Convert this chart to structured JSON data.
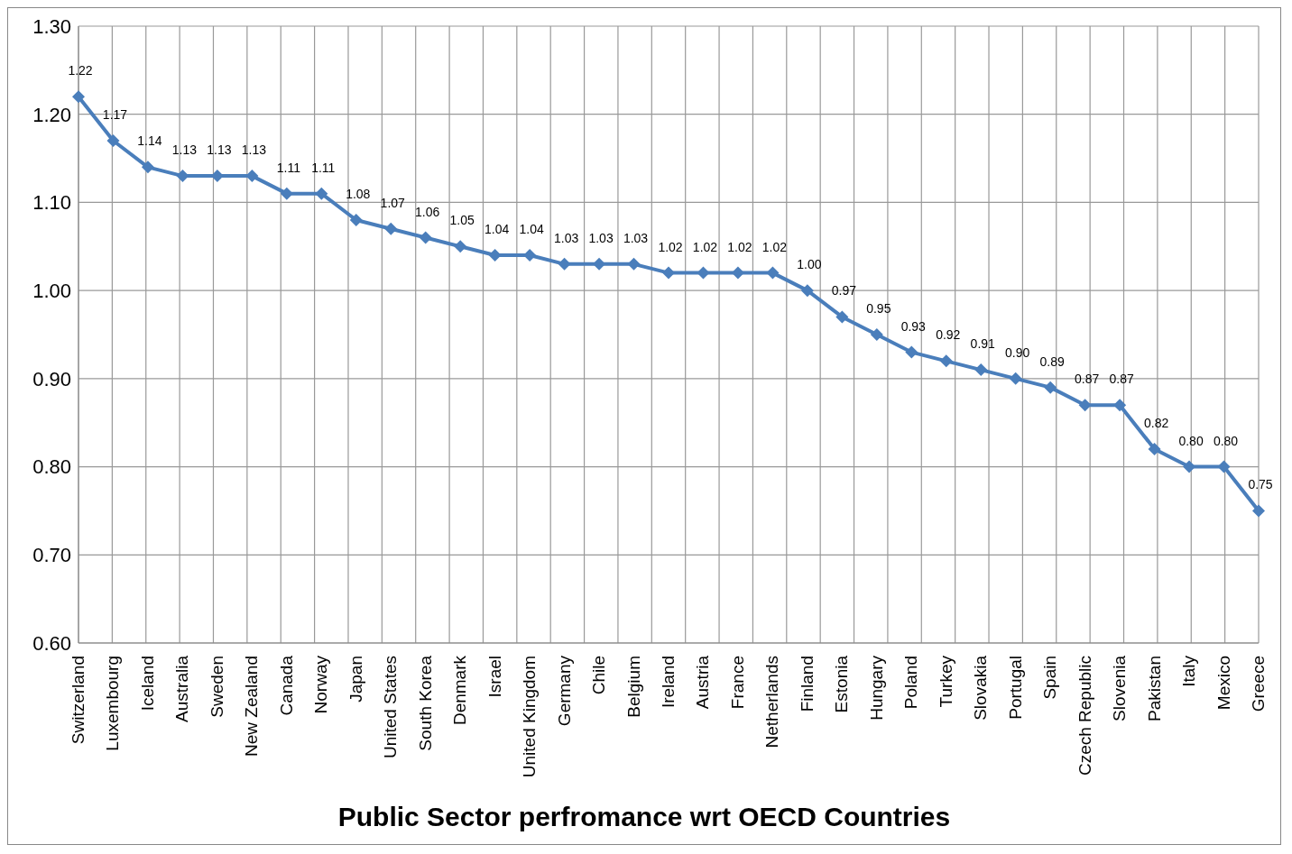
{
  "chart_data": {
    "type": "line",
    "title": "Public Sector perfromance wrt OECD Countries",
    "categories": [
      "Switzerland",
      "Luxembourg",
      "Iceland",
      "Australia",
      "Sweden",
      "New Zealand",
      "Canada",
      "Norway",
      "Japan",
      "United States",
      "South Korea",
      "Denmark",
      "Israel",
      "United Kingdom",
      "Germany",
      "Chile",
      "Belgium",
      "Ireland",
      "Austria",
      "France",
      "Netherlands",
      "Finland",
      "Estonia",
      "Hungary",
      "Poland",
      "Turkey",
      "Slovakia",
      "Portugal",
      "Spain",
      "Czech Republic",
      "Slovenia",
      "Pakistan",
      "Italy",
      "Mexico",
      "Greece"
    ],
    "values": [
      1.22,
      1.17,
      1.14,
      1.13,
      1.13,
      1.13,
      1.11,
      1.11,
      1.08,
      1.07,
      1.06,
      1.05,
      1.04,
      1.04,
      1.03,
      1.03,
      1.03,
      1.02,
      1.02,
      1.02,
      1.02,
      1.0,
      0.97,
      0.95,
      0.93,
      0.92,
      0.91,
      0.9,
      0.89,
      0.87,
      0.87,
      0.82,
      0.8,
      0.8,
      0.75
    ],
    "value_labels": [
      "1.22",
      "1.17",
      "1.14",
      "1.13",
      "1.13",
      "1.13",
      "1.11",
      "1.11",
      "1.08",
      "1.07",
      "1.06",
      "1.05",
      "1.04",
      "1.04",
      "1.03",
      "1.03",
      "1.03",
      "1.02",
      "1.02",
      "1.02",
      "1.02",
      "1.00",
      "0.97",
      "0.95",
      "0.93",
      "0.92",
      "0.91",
      "0.90",
      "0.89",
      "0.87",
      "0.87",
      "0.82",
      "0.80",
      "0.80",
      "0.75"
    ],
    "color": "#4a7ebb",
    "marker": "diamond",
    "ylim": [
      0.6,
      1.3
    ],
    "yticks": [
      {
        "value": 0.6,
        "label": "0.60"
      },
      {
        "value": 0.7,
        "label": "0.70"
      },
      {
        "value": 0.8,
        "label": "0.80"
      },
      {
        "value": 0.9,
        "label": "0.90"
      },
      {
        "value": 1.0,
        "label": "1.00"
      },
      {
        "value": 1.1,
        "label": "1.10"
      },
      {
        "value": 1.2,
        "label": "1.20"
      },
      {
        "value": 1.3,
        "label": "1.30"
      }
    ],
    "grid": true,
    "legend": false
  }
}
